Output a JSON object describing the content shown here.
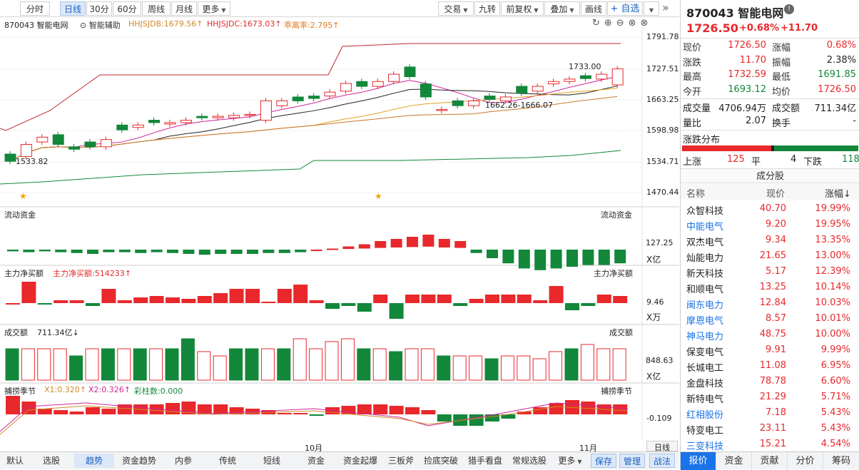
{
  "toolbar": {
    "periods": [
      "分时",
      "日线",
      "30分",
      "60分",
      "周线",
      "月线"
    ],
    "more": "更多",
    "right": [
      "交易",
      "九转",
      "前复权",
      "叠加",
      "画线"
    ],
    "fav": "+ 自选",
    "expand": "»"
  },
  "chart": {
    "code_name": "870043 智能电网",
    "aux": "⊙ 智能辅助",
    "jdb": "HHJSJDB:1679.56↑",
    "jdc": "HHJSJDC:1673.03↑",
    "lrate": "乖离率:2.795↑",
    "yticks": [
      "1791.78",
      "1727.51",
      "1663.25",
      "1598.98",
      "1534.71",
      "1470.44"
    ],
    "ann_high": "1733.00",
    "ann_low": "1533.82",
    "ann_range": "1662.26-1666.07",
    "p2_title": "流动资金",
    "p2_right": "流动资金",
    "p2_val": "127.25",
    "p2_unit": "X亿",
    "p3_title": "主力净买额",
    "p3_label": "主力净买额:514233↑",
    "p3_right": "主力净买额",
    "p3_val": "9.46",
    "p3_unit": "X万",
    "p4_title": "成交额",
    "p4_label": "711.34亿↓",
    "p4_right": "成交额",
    "p4_val": "848.63",
    "p4_unit": "X亿",
    "p5_title": "捕捞季节",
    "p5_x1": "X1:0.320↑",
    "p5_x2": "X2:0.326↑",
    "p5_col": "彩柱数:0.000",
    "p5_right": "捕捞季节",
    "p5_val": "-0.109",
    "xlabels": [
      "10月",
      "11月"
    ],
    "dayline": "日线"
  },
  "bottom": [
    "默认",
    "选股",
    "趋势",
    "资金趋势",
    "内参",
    "传统",
    "短线",
    "资金",
    "资金起爆",
    "三板斧",
    "捡底突破",
    "猎手看盘",
    "常规选股",
    "更多"
  ],
  "bottom_right": [
    "保存",
    "管理",
    "战法"
  ],
  "quote": {
    "code": "870043 智能电网",
    "price": "1726.50",
    "pct": "+0.68%",
    "chg": "+11.70",
    "rows": [
      [
        "现价",
        "1726.50",
        "red",
        "涨幅",
        "0.68%",
        "red"
      ],
      [
        "涨跌",
        "11.70",
        "red",
        "振幅",
        "2.38%",
        "dark"
      ],
      [
        "最高",
        "1732.59",
        "red",
        "最低",
        "1691.85",
        "green"
      ],
      [
        "今开",
        "1693.12",
        "green",
        "均价",
        "1726.50",
        "red"
      ]
    ],
    "rows2": [
      [
        "成交量",
        "4706.94万",
        "成交额",
        "711.34亿"
      ],
      [
        "量比",
        "2.07",
        "换手",
        "-"
      ]
    ],
    "dist_title": "涨跌分布",
    "up_label": "上涨",
    "up": "125",
    "flat_label": "平",
    "flat": "4",
    "down_label": "下跌",
    "down": "118"
  },
  "components": {
    "title": "成分股",
    "headers": [
      "名称",
      "现价",
      "涨幅↓"
    ],
    "rows": [
      [
        "众智科技",
        "40.70",
        "19.99%",
        false
      ],
      [
        "中能电气",
        "9.20",
        "19.95%",
        true
      ],
      [
        "双杰电气",
        "9.34",
        "13.35%",
        false
      ],
      [
        "灿能电力",
        "21.65",
        "13.00%",
        false
      ],
      [
        "新天科技",
        "5.17",
        "12.39%",
        false
      ],
      [
        "和顺电气",
        "13.25",
        "10.14%",
        false
      ],
      [
        "闽东电力",
        "12.84",
        "10.03%",
        true
      ],
      [
        "摩恩电气",
        "8.57",
        "10.01%",
        true
      ],
      [
        "神马电力",
        "48.75",
        "10.00%",
        true
      ],
      [
        "保变电气",
        "9.91",
        "9.99%",
        false
      ],
      [
        "长城电工",
        "11.08",
        "6.95%",
        false
      ],
      [
        "金盘科技",
        "78.78",
        "6.60%",
        false
      ],
      [
        "新特电气",
        "21.29",
        "5.71%",
        false
      ],
      [
        "红相股份",
        "7.18",
        "5.43%",
        true
      ],
      [
        "特变电工",
        "23.11",
        "5.43%",
        false
      ],
      [
        "三变科技",
        "15.21",
        "4.54%",
        true
      ]
    ]
  },
  "rtabs": [
    "报价",
    "资金",
    "贡献",
    "分价",
    "筹码"
  ],
  "colors": {
    "up": "#e8282b",
    "down": "#13873a",
    "accent": "#1a73e8"
  }
}
